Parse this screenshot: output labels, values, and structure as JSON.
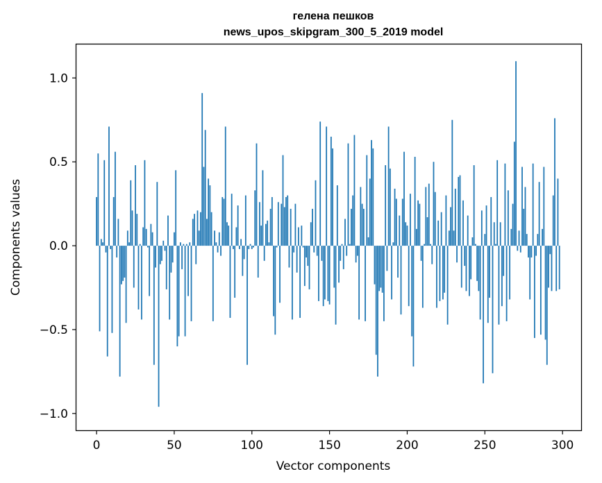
{
  "chart_data": {
    "type": "bar",
    "title": "гелена пешков",
    "subtitle": "news_upos_skipgram_300_5_2019 model",
    "xlabel": "Vector components",
    "ylabel": "Components values",
    "xlim": [
      -13,
      312
    ],
    "ylim": [
      -1.1,
      1.2
    ],
    "xticks": [
      0,
      50,
      100,
      150,
      200,
      250,
      300
    ],
    "xtick_labels": [
      "0",
      "50",
      "100",
      "150",
      "200",
      "250",
      "300"
    ],
    "yticks": [
      -1.0,
      -0.5,
      0.0,
      0.5,
      1.0
    ],
    "ytick_labels": [
      "−1.0",
      "−0.5",
      "0.0",
      "0.5",
      "1.0"
    ],
    "bar_color": "#1f77b4",
    "grid": false,
    "legend": "none",
    "x_start": 0,
    "values": [
      0.29,
      0.55,
      -0.51,
      0.04,
      0.02,
      0.51,
      -0.04,
      -0.66,
      0.71,
      -0.02,
      -0.52,
      0.29,
      0.56,
      -0.07,
      0.16,
      -0.78,
      -0.23,
      -0.21,
      -0.19,
      -0.46,
      0.09,
      0.02,
      0.39,
      0.21,
      -0.25,
      0.48,
      0.19,
      -0.38,
      0.01,
      -0.44,
      0.11,
      0.51,
      0.1,
      -0.01,
      -0.3,
      0.13,
      0.08,
      -0.71,
      -0.13,
      0.38,
      -0.96,
      -0.11,
      -0.09,
      0.03,
      -0.03,
      -0.26,
      0.18,
      -0.44,
      -0.16,
      -0.1,
      0.08,
      0.45,
      -0.6,
      -0.54,
      0.02,
      -0.14,
      0.01,
      -0.54,
      0.01,
      -0.3,
      0.02,
      -0.45,
      0.16,
      0.19,
      -0.11,
      0.21,
      0.09,
      0.2,
      0.91,
      0.47,
      0.69,
      0.16,
      0.4,
      0.36,
      0.2,
      -0.45,
      0.09,
      0.02,
      -0.04,
      0.08,
      -0.06,
      0.29,
      0.28,
      0.71,
      0.14,
      0.12,
      -0.43,
      0.31,
      -0.02,
      -0.31,
      0.11,
      0.24,
      -0.02,
      0.04,
      -0.18,
      -0.08,
      0.3,
      -0.71,
      -0.02,
      0.01,
      -0.02,
      -0.01,
      0.33,
      0.61,
      -0.19,
      0.26,
      0.12,
      0.45,
      -0.09,
      0.13,
      0.15,
      0.02,
      0.22,
      0.29,
      -0.42,
      -0.53,
      -0.01,
      0.26,
      -0.34,
      0.25,
      0.54,
      0.23,
      0.29,
      0.3,
      -0.13,
      0.22,
      -0.44,
      -0.04,
      0.25,
      -0.16,
      0.11,
      -0.43,
      0.12,
      -0.01,
      -0.24,
      -0.07,
      -0.12,
      -0.26,
      0.14,
      0.22,
      -0.04,
      0.39,
      -0.06,
      -0.33,
      0.74,
      -0.09,
      -0.36,
      -0.32,
      0.71,
      -0.33,
      -0.35,
      0.65,
      0.58,
      -0.25,
      -0.47,
      0.36,
      -0.22,
      -0.09,
      0.01,
      -0.14,
      0.16,
      -0.06,
      0.61,
      0.01,
      0.22,
      0.3,
      0.66,
      -0.1,
      -0.06,
      -0.44,
      0.35,
      0.25,
      0.22,
      -0.45,
      0.54,
      0.05,
      0.4,
      0.63,
      0.58,
      -0.23,
      -0.65,
      -0.78,
      -0.27,
      -0.25,
      -0.28,
      -0.45,
      0.48,
      -0.15,
      0.71,
      0.46,
      -0.32,
      0.02,
      0.34,
      0.28,
      -0.19,
      0.18,
      -0.41,
      0.28,
      0.56,
      0.14,
      0.12,
      -0.36,
      0.31,
      -0.54,
      -0.72,
      0.53,
      0.1,
      0.27,
      0.25,
      -0.09,
      -0.37,
      0.01,
      0.35,
      0.17,
      0.37,
      0.01,
      -0.11,
      0.5,
      0.32,
      -0.37,
      0.15,
      -0.33,
      0.2,
      -0.32,
      -0.28,
      0.3,
      -0.47,
      0.09,
      0.23,
      0.75,
      0.09,
      0.34,
      -0.1,
      0.41,
      0.42,
      -0.25,
      0.27,
      -0.12,
      -0.27,
      0.18,
      -0.3,
      -0.2,
      0.05,
      0.48,
      0.01,
      -0.21,
      -0.27,
      -0.44,
      0.21,
      -0.82,
      0.07,
      0.24,
      -0.46,
      -0.31,
      0.29,
      -0.76,
      0.14,
      0.01,
      0.51,
      -0.47,
      0.14,
      -0.36,
      -0.18,
      0.49,
      -0.45,
      0.33,
      -0.32,
      0.1,
      0.25,
      0.62,
      1.1,
      -0.03,
      0.09,
      -0.04,
      0.47,
      0.22,
      0.35,
      0.07,
      -0.07,
      -0.32,
      -0.07,
      0.49,
      -0.55,
      -0.06,
      0.07,
      0.38,
      -0.53,
      0.1,
      0.47,
      -0.56,
      -0.71,
      -0.25,
      -0.05,
      -0.27,
      0.3,
      0.76,
      -0.27,
      0.4,
      -0.26
    ]
  }
}
